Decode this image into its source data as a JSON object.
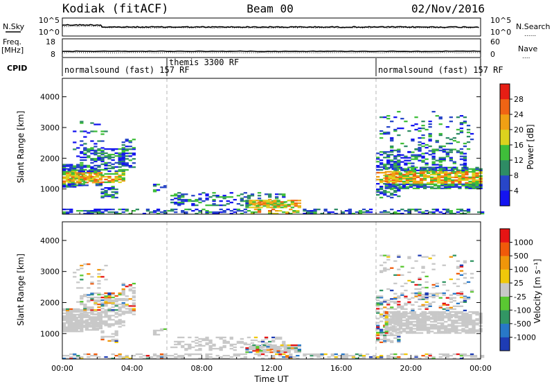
{
  "header": {
    "station": "Kodiak (fitACF)",
    "beam": "Beam 00",
    "date": "02/Nov/2016"
  },
  "strips": {
    "noise": {
      "left_label": "N.Sky",
      "left_ticks": [
        "10^5",
        "10^0"
      ],
      "right_label": "N.Search",
      "right_ticks": [
        "10^5",
        "10^0"
      ]
    },
    "freq": {
      "left_label": "Freq.",
      "left_unit": "[MHz]",
      "left_ticks": [
        "18",
        "8"
      ],
      "right_label": "Nave",
      "right_ticks": [
        "60",
        "0"
      ]
    },
    "cpid": {
      "label": "CPID",
      "segments": [
        {
          "text": "normalsound (fast) 157 RF",
          "start_hour": 0
        },
        {
          "text": "themis 3300 RF",
          "start_hour": 6
        },
        {
          "text": "normalsound (fast) 157 RF",
          "start_hour": 18
        }
      ]
    }
  },
  "chart_data": [
    {
      "type": "heatmap",
      "panel": "power",
      "ylabel": "Slant Range [km]",
      "xlabel": "Time UT",
      "ylim": [
        180,
        4600
      ],
      "yticks": [
        1000,
        2000,
        3000,
        4000
      ],
      "xlim": [
        0,
        24
      ],
      "xticks": [
        "00:00",
        "04:00",
        "08:00",
        "12:00",
        "16:00",
        "20:00",
        "00:00"
      ],
      "colorbar": {
        "label": "Power [dB]",
        "tick_labels": [
          "4",
          "8",
          "12",
          "16",
          "20",
          "24",
          "28"
        ],
        "colors": [
          "#1414f0",
          "#2846c8",
          "#2e8c64",
          "#3fbe3a",
          "#dcd21e",
          "#f0a014",
          "#f06414",
          "#e61e14"
        ]
      },
      "mode_change_hours": [
        6,
        18
      ]
    },
    {
      "type": "heatmap",
      "panel": "velocity",
      "ylabel": "Slant Range [km]",
      "xlabel": "Time UT",
      "ylim": [
        180,
        4600
      ],
      "yticks": [
        1000,
        2000,
        3000,
        4000
      ],
      "xlim": [
        0,
        24
      ],
      "xticks": [
        "00:00",
        "04:00",
        "08:00",
        "12:00",
        "16:00",
        "20:00",
        "00:00"
      ],
      "colorbar": {
        "label": "Velocity [m s⁻¹]",
        "tick_labels": [
          "1000",
          "500",
          "100",
          "25",
          "-25",
          "-100",
          "-500",
          "-1000"
        ],
        "colors": [
          "#1e3cb4",
          "#2878c8",
          "#329664",
          "#5ac832",
          "#c8c8c8",
          "#f0c80a",
          "#f0960a",
          "#f05a0a",
          "#e61414"
        ]
      },
      "mode_change_hours": [
        6,
        18
      ]
    }
  ],
  "x_axis": {
    "title": "Time UT",
    "ticks": [
      "00:00",
      "04:00",
      "08:00",
      "12:00",
      "16:00",
      "20:00",
      "00:00"
    ]
  },
  "colors": {
    "ground_scatter": "#c8c8c8",
    "frame": "#000000",
    "mode_line": "#b4b4b4"
  }
}
